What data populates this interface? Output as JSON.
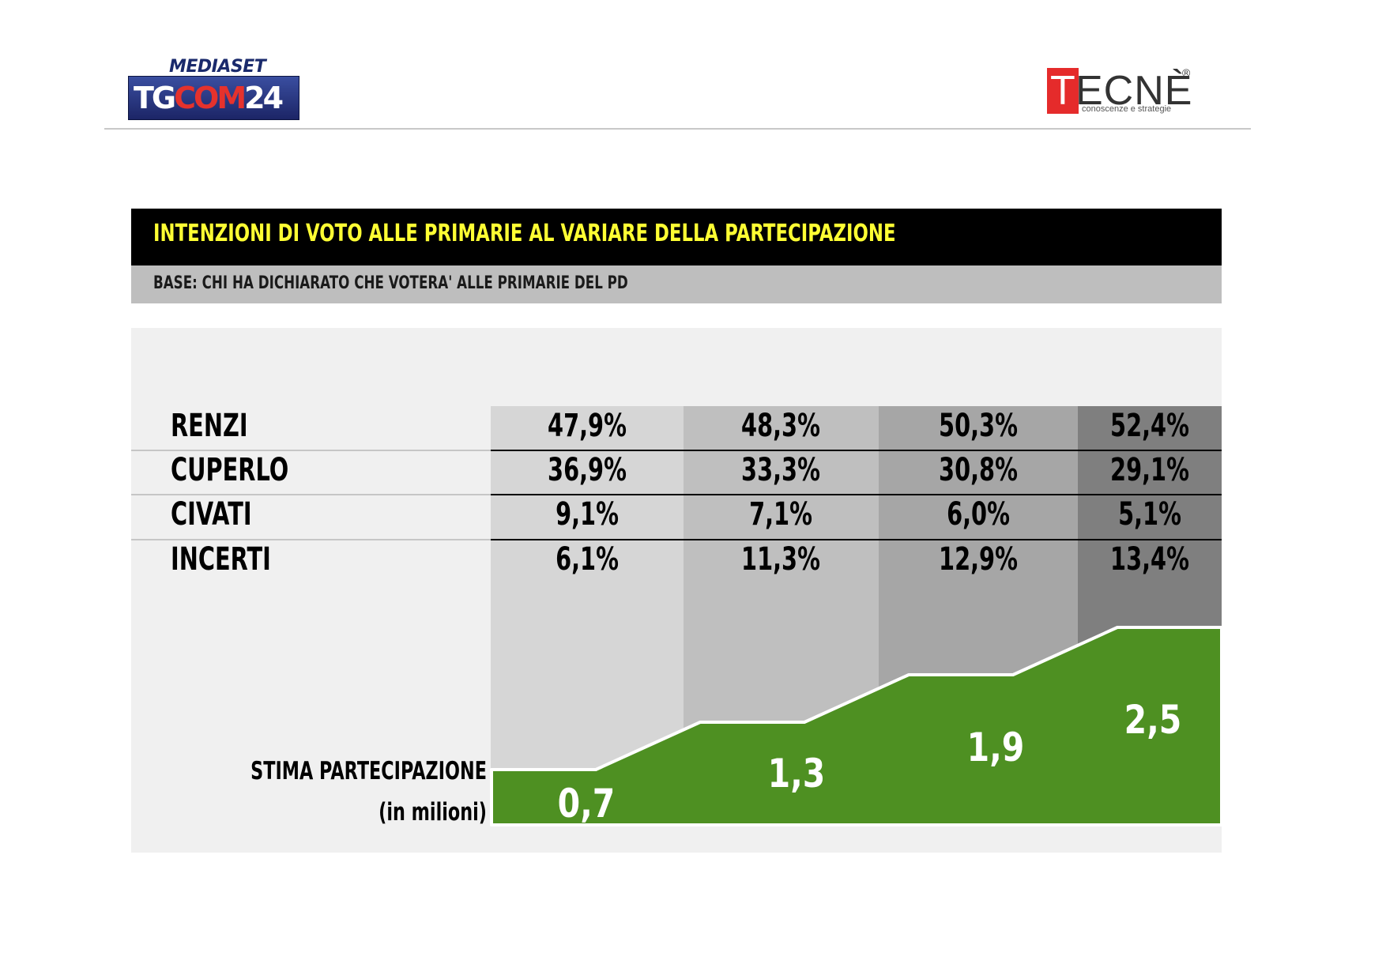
{
  "logos": {
    "left_top": "MEDIASET",
    "left_main_a": "TG",
    "left_main_b": "COM",
    "left_main_c": "24",
    "right_first": "T",
    "right_rest": "ECNÈ",
    "right_reg": "®",
    "right_tagline": "conoscenze e strategie"
  },
  "header": {
    "title": "INTENZIONI DI VOTO ALLE PRIMARIE AL VARIARE DELLA PARTECIPAZIONE",
    "subtitle": "BASE: CHI HA DICHIARATO CHE VOTERA' ALLE PRIMARIE DEL PD"
  },
  "table": {
    "rows": [
      {
        "label": "RENZI",
        "values": [
          "47,9%",
          "48,3%",
          "50,3%",
          "52,4%"
        ]
      },
      {
        "label": "CUPERLO",
        "values": [
          "36,9%",
          "33,3%",
          "30,8%",
          "29,1%"
        ]
      },
      {
        "label": "CIVATI",
        "values": [
          "9,1%",
          "7,1%",
          "6,0%",
          "5,1%"
        ]
      },
      {
        "label": "INCERTI",
        "values": [
          "6,1%",
          "11,3%",
          "12,9%",
          "13,4%"
        ]
      }
    ],
    "column_colors": [
      "#d6d6d6",
      "#bfbfbf",
      "#a6a6a6",
      "#7f7f7f"
    ]
  },
  "participation": {
    "label_line1": "STIMA PARTECIPAZIONE",
    "label_line2": "(in milioni)",
    "labels": [
      "0,7",
      "1,3",
      "1,9",
      "2,5"
    ],
    "fill_color": "#4e9022"
  },
  "chart_data": {
    "type": "table",
    "title": "INTENZIONI DI VOTO ALLE PRIMARIE AL VARIARE DELLA PARTECIPAZIONE",
    "subtitle": "BASE: CHI HA DICHIARATO CHE VOTERA' ALLE PRIMARIE DEL PD",
    "categories": [
      "0,7",
      "1,3",
      "1,9",
      "2,5"
    ],
    "series": [
      {
        "name": "RENZI",
        "values": [
          47.9,
          48.3,
          50.3,
          52.4
        ]
      },
      {
        "name": "CUPERLO",
        "values": [
          36.9,
          33.3,
          30.8,
          29.1
        ]
      },
      {
        "name": "CIVATI",
        "values": [
          9.1,
          7.1,
          6.0,
          5.1
        ]
      },
      {
        "name": "INCERTI",
        "values": [
          6.1,
          11.3,
          12.9,
          13.4
        ]
      }
    ],
    "participation_millions": [
      0.7,
      1.3,
      1.9,
      2.5
    ],
    "participation_label": "STIMA PARTECIPAZIONE (in milioni)"
  }
}
